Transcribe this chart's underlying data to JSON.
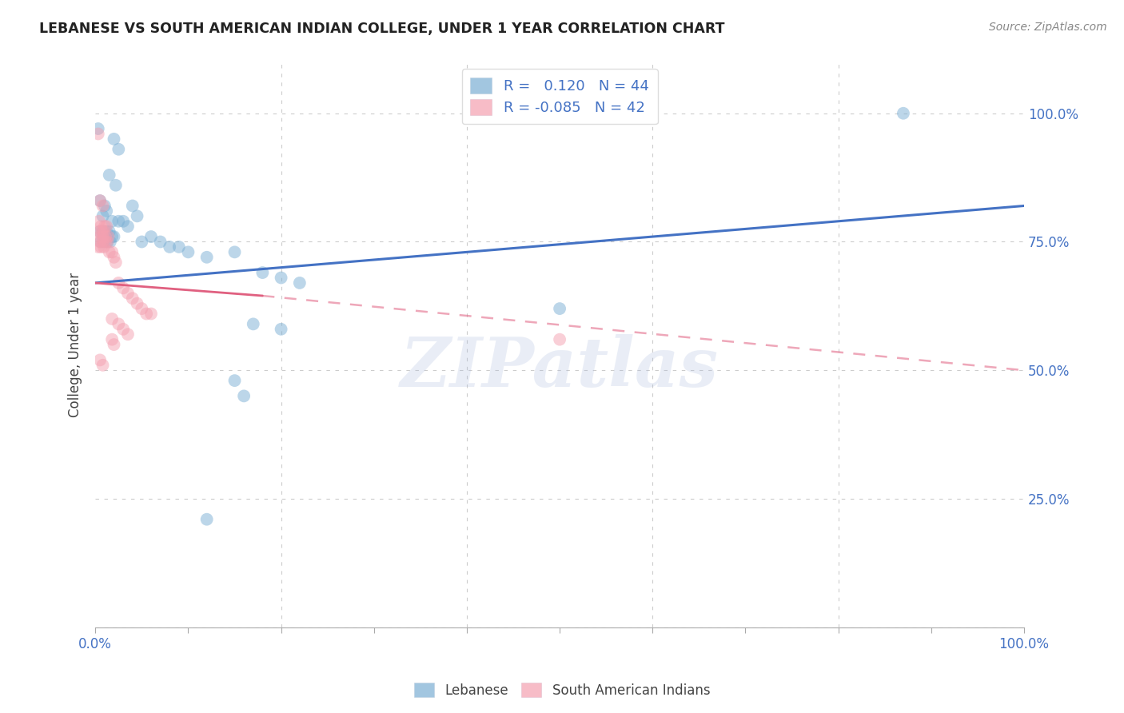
{
  "title": "LEBANESE VS SOUTH AMERICAN INDIAN COLLEGE, UNDER 1 YEAR CORRELATION CHART",
  "source": "Source: ZipAtlas.com",
  "ylabel": "College, Under 1 year",
  "legend_label1": "Lebanese",
  "legend_label2": "South American Indians",
  "r1": 0.12,
  "n1": 44,
  "r2": -0.085,
  "n2": 42,
  "blue_color": "#7BAFD4",
  "pink_color": "#F4A0B0",
  "blue_line_color": "#4472C4",
  "pink_line_color": "#E06080",
  "blue_scatter": [
    [
      0.003,
      0.97
    ],
    [
      0.02,
      0.95
    ],
    [
      0.025,
      0.93
    ],
    [
      0.015,
      0.88
    ],
    [
      0.022,
      0.86
    ],
    [
      0.005,
      0.83
    ],
    [
      0.01,
      0.82
    ],
    [
      0.012,
      0.81
    ],
    [
      0.008,
      0.8
    ],
    [
      0.018,
      0.79
    ],
    [
      0.025,
      0.79
    ],
    [
      0.03,
      0.79
    ],
    [
      0.035,
      0.78
    ],
    [
      0.04,
      0.82
    ],
    [
      0.045,
      0.8
    ],
    [
      0.005,
      0.77
    ],
    [
      0.008,
      0.77
    ],
    [
      0.01,
      0.77
    ],
    [
      0.012,
      0.77
    ],
    [
      0.015,
      0.77
    ],
    [
      0.018,
      0.76
    ],
    [
      0.02,
      0.76
    ],
    [
      0.006,
      0.75
    ],
    [
      0.009,
      0.75
    ],
    [
      0.013,
      0.75
    ],
    [
      0.016,
      0.75
    ],
    [
      0.05,
      0.75
    ],
    [
      0.06,
      0.76
    ],
    [
      0.07,
      0.75
    ],
    [
      0.08,
      0.74
    ],
    [
      0.09,
      0.74
    ],
    [
      0.1,
      0.73
    ],
    [
      0.12,
      0.72
    ],
    [
      0.15,
      0.73
    ],
    [
      0.18,
      0.69
    ],
    [
      0.2,
      0.68
    ],
    [
      0.22,
      0.67
    ],
    [
      0.17,
      0.59
    ],
    [
      0.2,
      0.58
    ],
    [
      0.15,
      0.48
    ],
    [
      0.16,
      0.45
    ],
    [
      0.12,
      0.21
    ],
    [
      0.5,
      0.62
    ],
    [
      0.87,
      1.0
    ]
  ],
  "pink_scatter": [
    [
      0.003,
      0.96
    ],
    [
      0.005,
      0.83
    ],
    [
      0.008,
      0.82
    ],
    [
      0.004,
      0.79
    ],
    [
      0.006,
      0.78
    ],
    [
      0.01,
      0.78
    ],
    [
      0.012,
      0.78
    ],
    [
      0.004,
      0.77
    ],
    [
      0.007,
      0.77
    ],
    [
      0.009,
      0.77
    ],
    [
      0.005,
      0.76
    ],
    [
      0.008,
      0.76
    ],
    [
      0.011,
      0.76
    ],
    [
      0.014,
      0.76
    ],
    [
      0.005,
      0.75
    ],
    [
      0.008,
      0.75
    ],
    [
      0.011,
      0.75
    ],
    [
      0.013,
      0.75
    ],
    [
      0.003,
      0.74
    ],
    [
      0.006,
      0.74
    ],
    [
      0.009,
      0.74
    ],
    [
      0.015,
      0.73
    ],
    [
      0.018,
      0.73
    ],
    [
      0.02,
      0.72
    ],
    [
      0.022,
      0.71
    ],
    [
      0.025,
      0.67
    ],
    [
      0.03,
      0.66
    ],
    [
      0.035,
      0.65
    ],
    [
      0.04,
      0.64
    ],
    [
      0.045,
      0.63
    ],
    [
      0.05,
      0.62
    ],
    [
      0.055,
      0.61
    ],
    [
      0.06,
      0.61
    ],
    [
      0.018,
      0.6
    ],
    [
      0.025,
      0.59
    ],
    [
      0.03,
      0.58
    ],
    [
      0.035,
      0.57
    ],
    [
      0.018,
      0.56
    ],
    [
      0.02,
      0.55
    ],
    [
      0.005,
      0.52
    ],
    [
      0.008,
      0.51
    ],
    [
      0.5,
      0.56
    ]
  ],
  "blue_line": [
    [
      0.0,
      0.67
    ],
    [
      1.0,
      0.82
    ]
  ],
  "pink_line_solid": [
    [
      0.0,
      0.67
    ],
    [
      0.18,
      0.645
    ]
  ],
  "pink_line_dashed": [
    [
      0.18,
      0.645
    ],
    [
      1.0,
      0.5
    ]
  ],
  "ylim": [
    0.0,
    1.1
  ],
  "xlim": [
    0.0,
    1.0
  ],
  "yticks": [
    0.0,
    0.25,
    0.5,
    0.75,
    1.0
  ],
  "ytick_labels": [
    "",
    "25.0%",
    "50.0%",
    "75.0%",
    "100.0%"
  ],
  "watermark": "ZIPatlas",
  "bg_color": "#FFFFFF",
  "grid_color": "#CCCCCC",
  "title_color": "#222222",
  "axis_color": "#4472C4",
  "source_color": "#888888"
}
